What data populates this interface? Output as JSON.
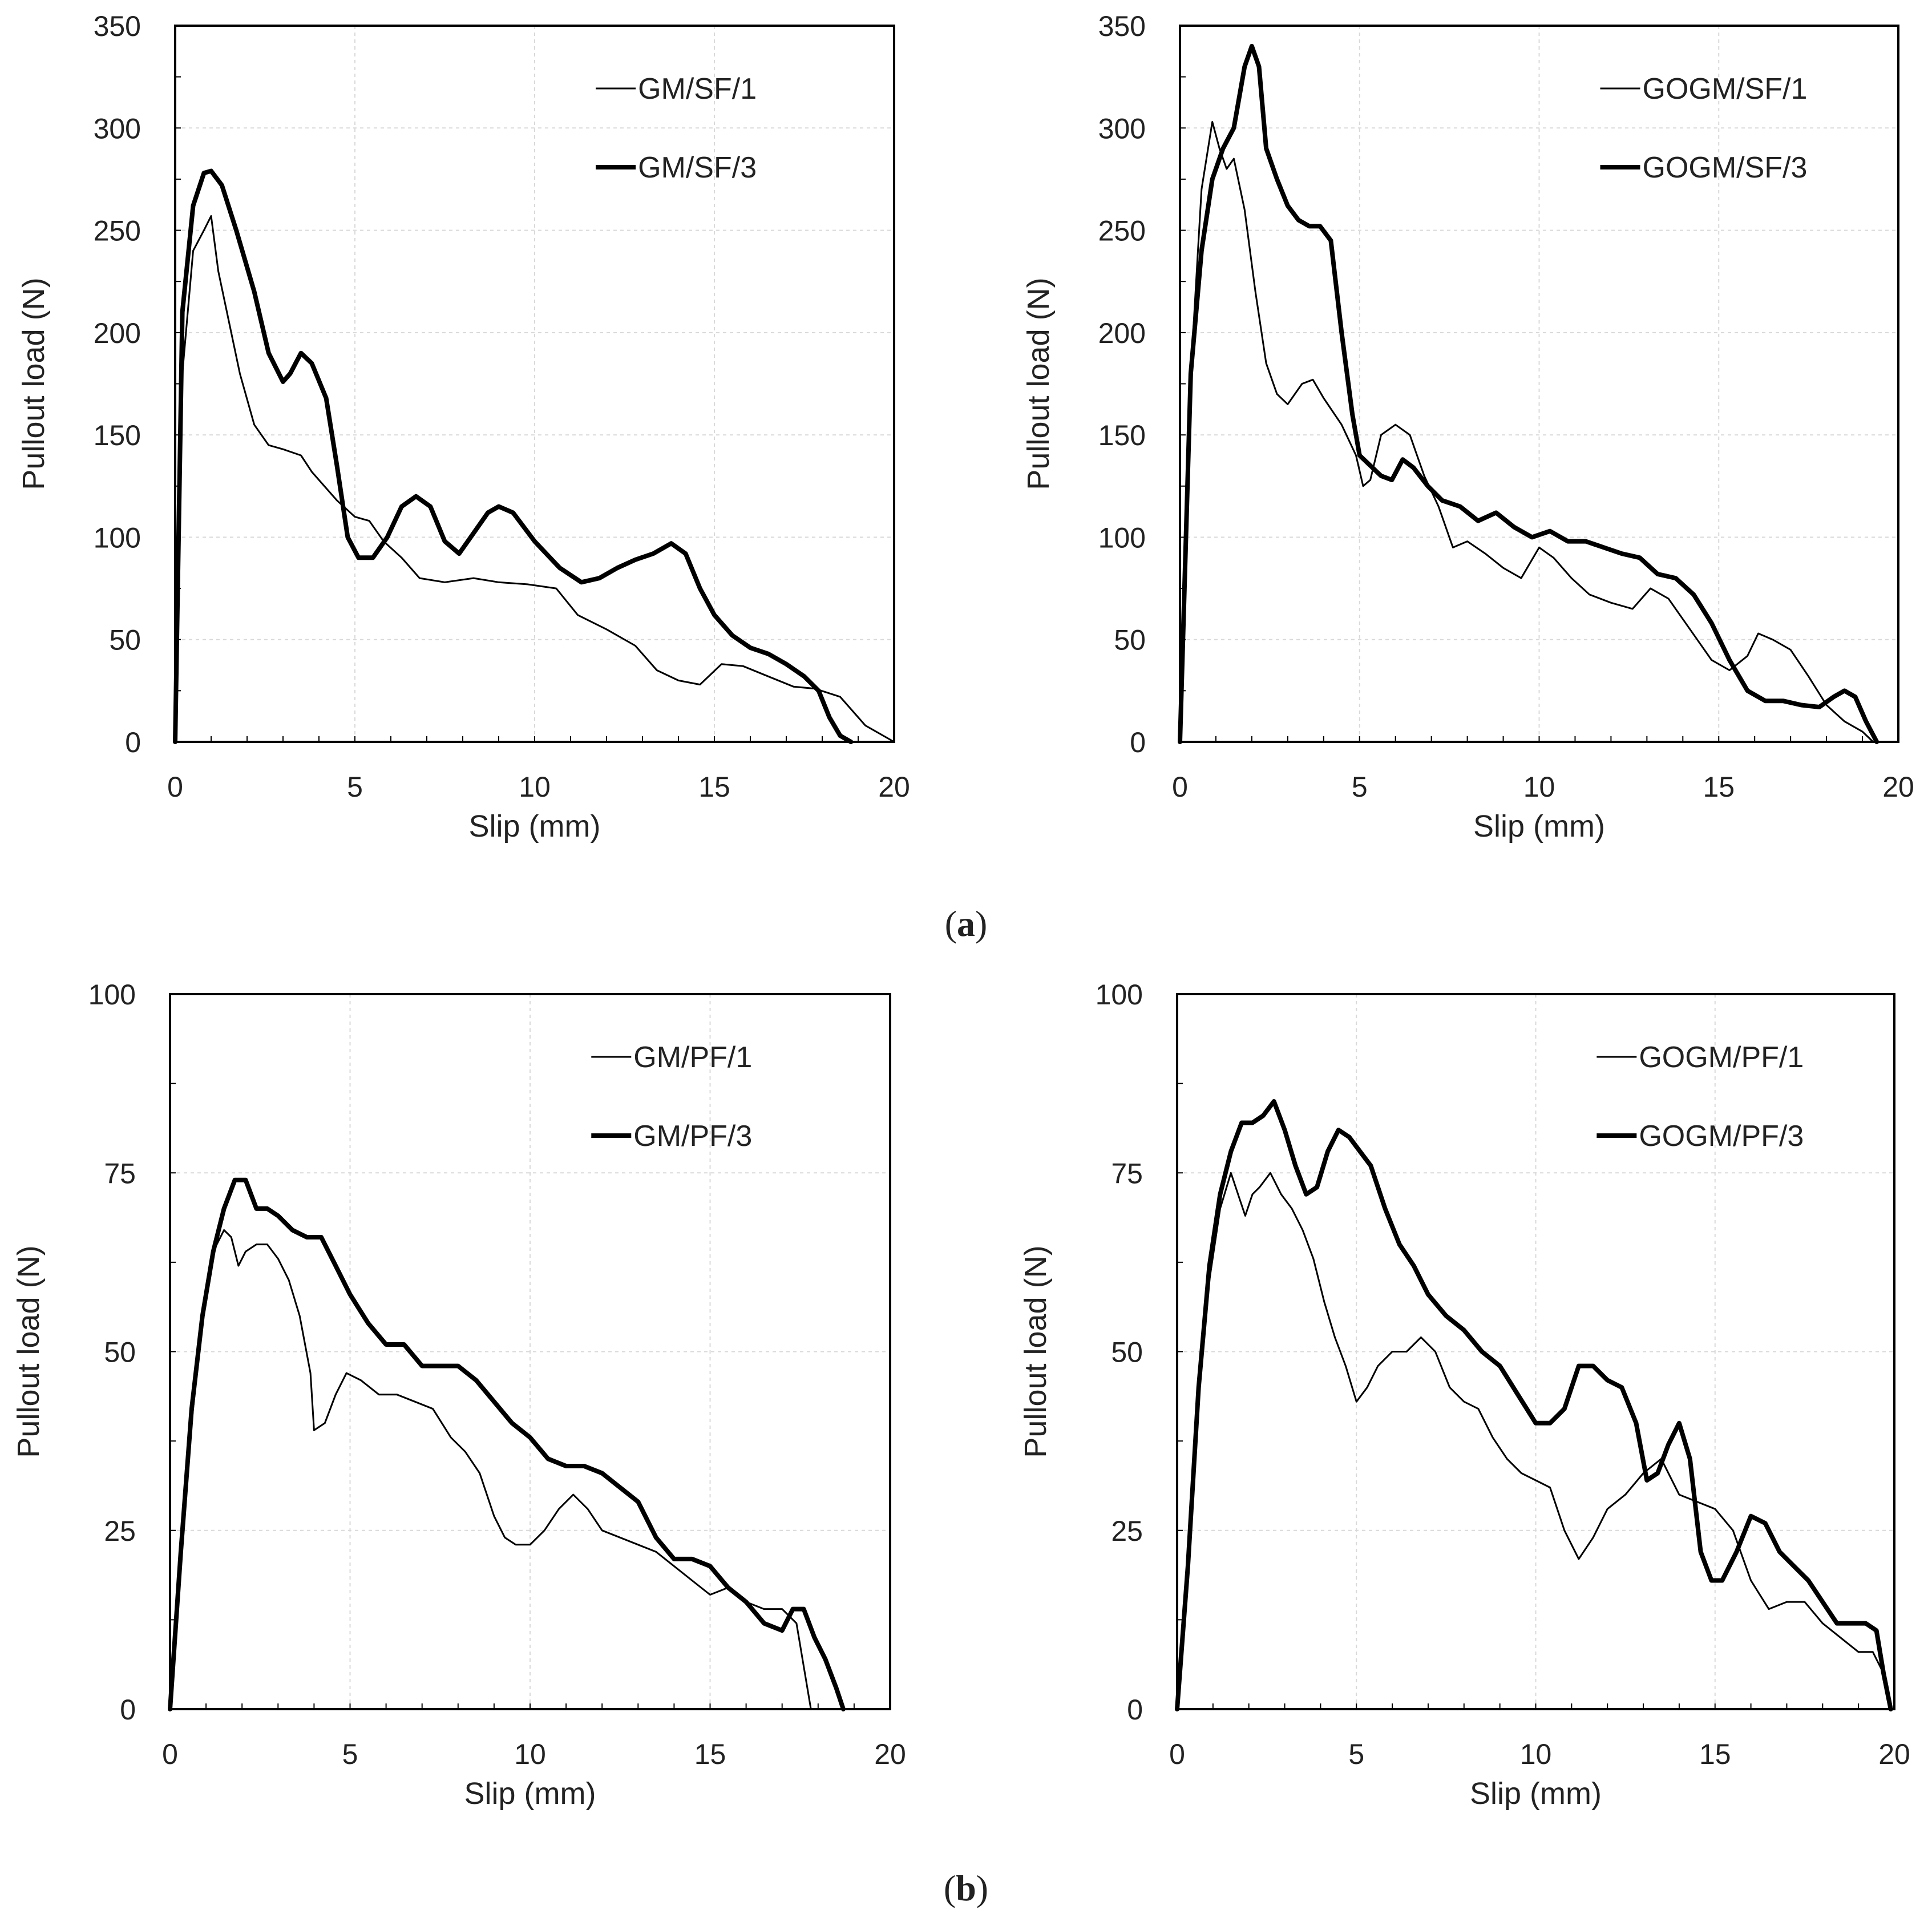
{
  "figure": {
    "panel_labels": [
      {
        "id": "a",
        "pre": "(",
        "letter": "a",
        "post": ")"
      },
      {
        "id": "b",
        "pre": "(",
        "letter": "b",
        "post": ")"
      }
    ]
  },
  "chart_data": [
    {
      "id": "gm-sf",
      "type": "line",
      "title": "",
      "xlabel": "Slip (mm)",
      "ylabel": "Pullout load (N)",
      "xlim": [
        0,
        20
      ],
      "ylim": [
        0,
        350
      ],
      "xticks": [
        0,
        5,
        10,
        15,
        20
      ],
      "yticks": [
        0,
        50,
        100,
        150,
        200,
        250,
        300,
        350
      ],
      "grid": true,
      "legend": "top-right",
      "series": [
        {
          "name": "GM/SF/1",
          "style": "thin",
          "x": [
            0,
            0.2,
            0.5,
            0.8,
            1.0,
            1.2,
            1.5,
            1.8,
            2.2,
            2.6,
            3.0,
            3.5,
            3.8,
            4.1,
            4.5,
            5.0,
            5.4,
            5.8,
            6.3,
            6.8,
            7.5,
            8.3,
            9.0,
            9.8,
            10.6,
            11.2,
            12.0,
            12.8,
            13.4,
            14.0,
            14.6,
            15.2,
            15.8,
            16.5,
            17.2,
            17.8,
            18.5,
            19.2,
            20.0
          ],
          "y": [
            0,
            180,
            240,
            250,
            257,
            230,
            205,
            180,
            155,
            145,
            143,
            140,
            132,
            126,
            118,
            110,
            108,
            98,
            90,
            80,
            78,
            80,
            78,
            77,
            75,
            62,
            55,
            47,
            35,
            30,
            28,
            38,
            37,
            32,
            27,
            26,
            22,
            8,
            0
          ]
        },
        {
          "name": "GM/SF/3",
          "style": "thick",
          "x": [
            0,
            0.2,
            0.5,
            0.8,
            1.0,
            1.3,
            1.7,
            2.2,
            2.6,
            3.0,
            3.2,
            3.5,
            3.8,
            4.2,
            4.5,
            4.8,
            5.1,
            5.5,
            5.9,
            6.3,
            6.7,
            7.1,
            7.5,
            7.9,
            8.3,
            8.7,
            9.0,
            9.4,
            10.0,
            10.7,
            11.3,
            11.8,
            12.3,
            12.8,
            13.3,
            13.8,
            14.2,
            14.6,
            15.0,
            15.5,
            16.0,
            16.5,
            17.0,
            17.5,
            17.9,
            18.2,
            18.5,
            18.8
          ],
          "y": [
            0,
            210,
            262,
            278,
            279,
            272,
            250,
            220,
            190,
            176,
            180,
            190,
            185,
            168,
            135,
            100,
            90,
            90,
            100,
            115,
            120,
            115,
            98,
            92,
            102,
            112,
            115,
            112,
            98,
            85,
            78,
            80,
            85,
            89,
            92,
            97,
            92,
            75,
            62,
            52,
            46,
            43,
            38,
            32,
            25,
            12,
            3,
            0
          ]
        }
      ]
    },
    {
      "id": "gogm-sf",
      "type": "line",
      "title": "",
      "xlabel": "Slip (mm)",
      "ylabel": "Pullout load (N)",
      "xlim": [
        0,
        20
      ],
      "ylim": [
        0,
        350
      ],
      "xticks": [
        0,
        5,
        10,
        15,
        20
      ],
      "yticks": [
        0,
        50,
        100,
        150,
        200,
        250,
        300,
        350
      ],
      "grid": true,
      "legend": "top-right",
      "series": [
        {
          "name": "GOGM/SF/1",
          "style": "thin",
          "x": [
            0,
            0.3,
            0.6,
            0.9,
            1.1,
            1.3,
            1.5,
            1.8,
            2.1,
            2.4,
            2.7,
            3.0,
            3.4,
            3.7,
            4.0,
            4.5,
            4.9,
            5.1,
            5.3,
            5.6,
            6.0,
            6.4,
            6.8,
            7.2,
            7.6,
            8.0,
            8.5,
            9.0,
            9.5,
            10.0,
            10.4,
            10.9,
            11.4,
            12.0,
            12.6,
            13.1,
            13.6,
            14.2,
            14.8,
            15.3,
            15.8,
            16.1,
            16.5,
            17.0,
            17.5,
            18.0,
            18.5,
            19.0,
            19.3
          ],
          "y": [
            0,
            180,
            270,
            303,
            290,
            280,
            285,
            260,
            220,
            185,
            170,
            165,
            175,
            177,
            168,
            155,
            140,
            125,
            128,
            150,
            155,
            150,
            130,
            115,
            95,
            98,
            92,
            85,
            80,
            95,
            90,
            80,
            72,
            68,
            65,
            75,
            70,
            55,
            40,
            35,
            42,
            53,
            50,
            45,
            32,
            18,
            10,
            5,
            0
          ]
        },
        {
          "name": "GOGM/SF/3",
          "style": "thick",
          "x": [
            0,
            0.3,
            0.6,
            0.9,
            1.2,
            1.5,
            1.8,
            2.0,
            2.2,
            2.4,
            2.7,
            3.0,
            3.3,
            3.6,
            3.9,
            4.2,
            4.5,
            4.8,
            5.0,
            5.3,
            5.6,
            5.9,
            6.2,
            6.5,
            6.9,
            7.3,
            7.8,
            8.3,
            8.8,
            9.3,
            9.8,
            10.3,
            10.8,
            11.3,
            11.8,
            12.3,
            12.8,
            13.3,
            13.8,
            14.3,
            14.8,
            15.3,
            15.8,
            16.3,
            16.8,
            17.3,
            17.8,
            18.2,
            18.5,
            18.8,
            19.1,
            19.4
          ],
          "y": [
            0,
            180,
            240,
            275,
            290,
            300,
            330,
            340,
            330,
            290,
            275,
            262,
            255,
            252,
            252,
            245,
            200,
            160,
            140,
            135,
            130,
            128,
            138,
            134,
            125,
            118,
            115,
            108,
            112,
            105,
            100,
            103,
            98,
            98,
            95,
            92,
            90,
            82,
            80,
            72,
            58,
            40,
            25,
            20,
            20,
            18,
            17,
            22,
            25,
            22,
            10,
            0
          ]
        }
      ]
    },
    {
      "id": "gm-pf",
      "type": "line",
      "title": "",
      "xlabel": "Slip (mm)",
      "ylabel": "Pullout load (N)",
      "xlim": [
        0,
        20
      ],
      "ylim": [
        0,
        100
      ],
      "xticks": [
        0,
        5,
        10,
        15,
        20
      ],
      "yticks": [
        0,
        25,
        50,
        75,
        100
      ],
      "grid": true,
      "legend": "top-right",
      "series": [
        {
          "name": "GM/PF/1",
          "style": "thin",
          "x": [
            0,
            0.3,
            0.6,
            0.9,
            1.2,
            1.5,
            1.7,
            1.9,
            2.1,
            2.4,
            2.7,
            3.0,
            3.3,
            3.6,
            3.9,
            4.0,
            4.3,
            4.6,
            4.9,
            5.3,
            5.8,
            6.3,
            6.8,
            7.3,
            7.8,
            8.2,
            8.6,
            9.0,
            9.3,
            9.6,
            10.0,
            10.4,
            10.8,
            11.2,
            11.6,
            12.0,
            12.5,
            13.0,
            13.5,
            14.0,
            14.5,
            15.0,
            15.5,
            16.0,
            16.5,
            17.0,
            17.4,
            17.8
          ],
          "y": [
            0,
            20,
            40,
            55,
            64,
            67,
            66,
            62,
            64,
            65,
            65,
            63,
            60,
            55,
            47,
            39,
            40,
            44,
            47,
            46,
            44,
            44,
            43,
            42,
            38,
            36,
            33,
            27,
            24,
            23,
            23,
            25,
            28,
            30,
            28,
            25,
            24,
            23,
            22,
            20,
            18,
            16,
            17,
            15,
            14,
            14,
            12,
            0
          ]
        },
        {
          "name": "GM/PF/3",
          "style": "thick",
          "x": [
            0,
            0.3,
            0.6,
            0.9,
            1.2,
            1.5,
            1.8,
            2.1,
            2.4,
            2.7,
            3.0,
            3.4,
            3.8,
            4.2,
            4.6,
            5.0,
            5.5,
            6.0,
            6.5,
            7.0,
            7.5,
            8.0,
            8.5,
            9.0,
            9.5,
            10.0,
            10.5,
            11.0,
            11.5,
            12.0,
            12.5,
            13.0,
            13.5,
            14.0,
            14.5,
            15.0,
            15.5,
            16.0,
            16.5,
            17.0,
            17.3,
            17.6,
            17.9,
            18.2,
            18.5,
            18.7
          ],
          "y": [
            0,
            22,
            42,
            55,
            64,
            70,
            74,
            74,
            70,
            70,
            69,
            67,
            66,
            66,
            62,
            58,
            54,
            51,
            51,
            48,
            48,
            48,
            46,
            43,
            40,
            38,
            35,
            34,
            34,
            33,
            31,
            29,
            24,
            21,
            21,
            20,
            17,
            15,
            12,
            11,
            14,
            14,
            10,
            7,
            3,
            0
          ]
        }
      ]
    },
    {
      "id": "gogm-pf",
      "type": "line",
      "title": "",
      "xlabel": "Slip (mm)",
      "ylabel": "Pullout load (N)",
      "xlim": [
        0,
        20
      ],
      "ylim": [
        0,
        100
      ],
      "xticks": [
        0,
        5,
        10,
        15,
        20
      ],
      "yticks": [
        0,
        25,
        50,
        75,
        100
      ],
      "grid": true,
      "legend": "top-right",
      "series": [
        {
          "name": "GOGM/PF/1",
          "style": "thin",
          "x": [
            0,
            0.3,
            0.6,
            0.9,
            1.2,
            1.5,
            1.7,
            1.9,
            2.1,
            2.3,
            2.6,
            2.9,
            3.2,
            3.5,
            3.8,
            4.1,
            4.4,
            4.7,
            5.0,
            5.3,
            5.6,
            6.0,
            6.4,
            6.8,
            7.2,
            7.6,
            8.0,
            8.4,
            8.8,
            9.2,
            9.6,
            10.0,
            10.4,
            10.8,
            11.2,
            11.6,
            12.0,
            12.5,
            13.0,
            13.5,
            14.0,
            14.5,
            15.0,
            15.5,
            16.0,
            16.5,
            17.0,
            17.5,
            18.0,
            18.5,
            19.0,
            19.4,
            19.7,
            19.9
          ],
          "y": [
            0,
            20,
            45,
            60,
            70,
            75,
            72,
            69,
            72,
            73,
            75,
            72,
            70,
            67,
            63,
            57,
            52,
            48,
            43,
            45,
            48,
            50,
            50,
            52,
            50,
            45,
            43,
            42,
            38,
            35,
            33,
            32,
            31,
            25,
            21,
            24,
            28,
            30,
            33,
            35,
            30,
            29,
            28,
            25,
            18,
            14,
            15,
            15,
            12,
            10,
            8,
            8,
            5,
            0
          ]
        },
        {
          "name": "GOGM/PF/3",
          "style": "thick",
          "x": [
            0,
            0.3,
            0.6,
            0.9,
            1.2,
            1.5,
            1.8,
            2.1,
            2.4,
            2.7,
            3.0,
            3.3,
            3.6,
            3.9,
            4.2,
            4.5,
            4.8,
            5.1,
            5.4,
            5.8,
            6.2,
            6.6,
            7.0,
            7.5,
            8.0,
            8.5,
            9.0,
            9.5,
            10.0,
            10.4,
            10.8,
            11.2,
            11.6,
            12.0,
            12.4,
            12.8,
            13.1,
            13.4,
            13.7,
            14.0,
            14.3,
            14.6,
            14.9,
            15.2,
            15.6,
            16.0,
            16.4,
            16.8,
            17.2,
            17.6,
            18.0,
            18.4,
            18.8,
            19.2,
            19.5,
            19.7,
            19.9
          ],
          "y": [
            0,
            20,
            45,
            62,
            72,
            78,
            82,
            82,
            83,
            85,
            81,
            76,
            72,
            73,
            78,
            81,
            80,
            78,
            76,
            70,
            65,
            62,
            58,
            55,
            53,
            50,
            48,
            44,
            40,
            40,
            42,
            48,
            48,
            46,
            45,
            40,
            32,
            33,
            37,
            40,
            35,
            22,
            18,
            18,
            22,
            27,
            26,
            22,
            20,
            18,
            15,
            12,
            12,
            12,
            11,
            5,
            0
          ]
        }
      ]
    }
  ]
}
